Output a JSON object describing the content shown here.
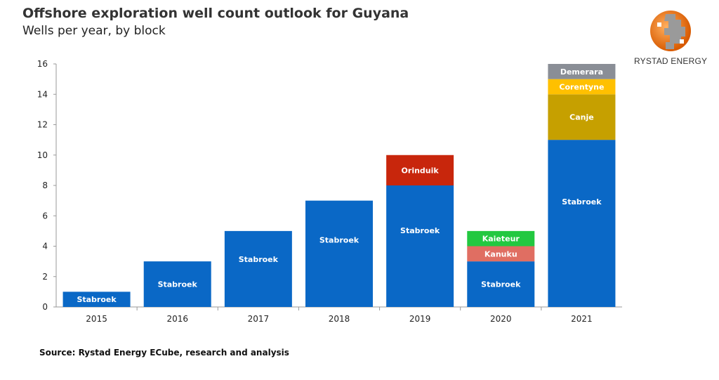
{
  "title": "Offshore exploration well count outlook for Guyana",
  "subtitle": "Wells per year, by block",
  "source": "Source: Rystad Energy ECube, research and analysis",
  "logo": {
    "text": "RYSTAD ENERGY",
    "icon": "globe-logo-icon"
  },
  "chart_data": {
    "type": "bar",
    "stacked": true,
    "title": "Offshore exploration well count outlook for Guyana",
    "subtitle": "Wells per year, by block",
    "categories": [
      "2015",
      "2016",
      "2017",
      "2018",
      "2019",
      "2020",
      "2021"
    ],
    "ylim": [
      0,
      16
    ],
    "yticks": [
      0,
      2,
      4,
      6,
      8,
      10,
      12,
      14,
      16
    ],
    "grid": false,
    "colors": {
      "Stabroek": "#0a68c6",
      "Orinduik": "#c8260c",
      "Kanuku": "#e06e62",
      "Kaieteur": "#22c840",
      "Canje": "#c6a000",
      "Corentyne": "#ffc000",
      "Demerara": "#8a8e96"
    },
    "series": [
      {
        "name": "Stabroek",
        "values": [
          1,
          3,
          5,
          7,
          8,
          3,
          11
        ]
      },
      {
        "name": "Orinduik",
        "values": [
          0,
          0,
          0,
          0,
          2,
          0,
          0
        ]
      },
      {
        "name": "Kanuku",
        "values": [
          0,
          0,
          0,
          0,
          0,
          1,
          0
        ]
      },
      {
        "name": "Kaieteur",
        "values": [
          0,
          0,
          0,
          0,
          0,
          1,
          0
        ]
      },
      {
        "name": "Canje",
        "values": [
          0,
          0,
          0,
          0,
          0,
          0,
          3
        ]
      },
      {
        "name": "Corentyne",
        "values": [
          0,
          0,
          0,
          0,
          0,
          0,
          1
        ]
      },
      {
        "name": "Demerara",
        "values": [
          0,
          0,
          0,
          0,
          0,
          0,
          1
        ]
      }
    ]
  }
}
